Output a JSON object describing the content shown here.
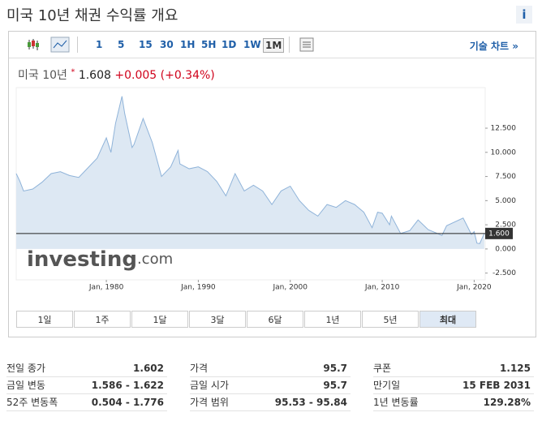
{
  "header": {
    "title": "미국 10년 채권 수익률 개요",
    "info_icon": "i"
  },
  "toolbar": {
    "intervals": [
      "1",
      "5",
      "15",
      "30",
      "1H",
      "5H",
      "1D",
      "1W",
      "1M"
    ],
    "active_interval": "1M",
    "link": "기술 차트 »"
  },
  "quote": {
    "name": "미국 10년",
    "marker": "*",
    "price": "1.608",
    "change": "+0.005",
    "change_pct": "(+0.34%)"
  },
  "chart_data": {
    "type": "area",
    "x": [
      1970.2,
      1970.6,
      1971,
      1972,
      1973,
      1974,
      1975,
      1976,
      1977,
      1978,
      1979,
      1980,
      1980.5,
      1981,
      1981.7,
      1982,
      1982.8,
      1983,
      1984,
      1985,
      1986,
      1987,
      1987.8,
      1988,
      1989,
      1990,
      1991,
      1992,
      1993,
      1994,
      1995,
      1996,
      1997,
      1998,
      1999,
      2000,
      2001,
      2002,
      2003,
      2004,
      2005,
      2006,
      2007,
      2008,
      2008.9,
      2009.5,
      2010,
      2010.8,
      2011,
      2012,
      2013,
      2013.9,
      2015,
      2016.5,
      2017,
      2018.8,
      2019.7,
      2020,
      2020.3,
      2020.6,
      2021.1
    ],
    "values": [
      7.8,
      7.0,
      6.0,
      6.2,
      6.9,
      7.8,
      8.0,
      7.6,
      7.4,
      8.4,
      9.4,
      11.5,
      10.0,
      13.0,
      15.8,
      14.0,
      10.5,
      10.8,
      13.5,
      11.0,
      7.5,
      8.5,
      10.2,
      8.8,
      8.3,
      8.5,
      8.0,
      7.0,
      5.5,
      7.8,
      6.0,
      6.6,
      6.0,
      4.6,
      6.0,
      6.5,
      5.0,
      4.0,
      3.4,
      4.6,
      4.3,
      5.0,
      4.6,
      3.8,
      2.2,
      3.8,
      3.7,
      2.5,
      3.4,
      1.6,
      1.9,
      3.0,
      2.0,
      1.4,
      2.4,
      3.2,
      1.5,
      1.8,
      0.6,
      0.55,
      1.6
    ],
    "color": "#8fb3d9",
    "fill": "#dde8f3",
    "xlim": [
      1970.2,
      2021.2
    ],
    "xticks": [
      {
        "value": 1980,
        "label": "Jan, 1980"
      },
      {
        "value": 1990,
        "label": "Jan, 1990"
      },
      {
        "value": 2000,
        "label": "Jan, 2000"
      },
      {
        "value": 2010,
        "label": "Jan, 2010"
      },
      {
        "value": 2020,
        "label": "Jan, 2020"
      }
    ],
    "ylim": [
      -3.2,
      16.7
    ],
    "yticks": [
      {
        "value": -2.5,
        "label": "-2.500"
      },
      {
        "value": 0,
        "label": "0.000"
      },
      {
        "value": 2.5,
        "label": "2.500"
      },
      {
        "value": 5,
        "label": "5.000"
      },
      {
        "value": 7.5,
        "label": "7.500"
      },
      {
        "value": 10,
        "label": "10.000"
      },
      {
        "value": 12.5,
        "label": "12.500"
      }
    ],
    "current": {
      "value": 1.6,
      "label": "1.600"
    },
    "watermark": {
      "brand": "investing",
      "suffix": ".com"
    }
  },
  "ranges": {
    "items": [
      "1일",
      "1주",
      "1달",
      "3달",
      "6달",
      "1년",
      "5년",
      "최대"
    ],
    "active": "최대"
  },
  "stats": [
    [
      [
        "전일 종가",
        "1.602"
      ],
      [
        "금일 변동",
        "1.586 - 1.622"
      ],
      [
        "52주 변동폭",
        "0.504 - 1.776"
      ]
    ],
    [
      [
        "가격",
        "95.7"
      ],
      [
        "금일 시가",
        "95.7"
      ],
      [
        "가격 범위",
        "95.53 - 95.84"
      ]
    ],
    [
      [
        "쿠폰",
        "1.125"
      ],
      [
        "만기일",
        "15 FEB 2031"
      ],
      [
        "1년 변동률",
        "129.28%"
      ]
    ]
  ]
}
